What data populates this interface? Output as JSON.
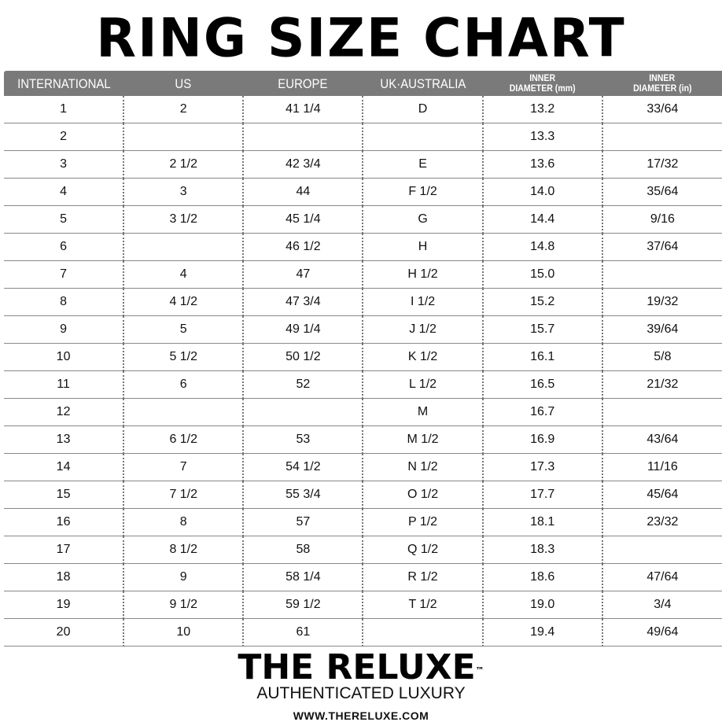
{
  "title": "RING SIZE CHART",
  "table": {
    "headers": [
      "INTERNATIONAL",
      "US",
      "EUROPE",
      "UK · AUSTRALIA",
      "INNER DIAMETER (mm)",
      "INNER DIAMETER (in)"
    ],
    "header_lines": [
      [
        "INTERNATIONAL"
      ],
      [
        "US"
      ],
      [
        "EUROPE"
      ],
      [
        "UK·AUSTRALIA"
      ],
      [
        "INNER",
        "DIAMETER (mm)"
      ],
      [
        "INNER",
        "DIAMETER (in)"
      ]
    ],
    "rows": [
      [
        "1",
        "2",
        "41 1/4",
        "D",
        "13.2",
        "33/64"
      ],
      [
        "2",
        "",
        "",
        "",
        "13.3",
        ""
      ],
      [
        "3",
        "2 1/2",
        "42 3/4",
        "E",
        "13.6",
        "17/32"
      ],
      [
        "4",
        "3",
        "44",
        "F 1/2",
        "14.0",
        "35/64"
      ],
      [
        "5",
        "3 1/2",
        "45 1/4",
        "G",
        "14.4",
        "9/16"
      ],
      [
        "6",
        "",
        "46 1/2",
        "H",
        "14.8",
        "37/64"
      ],
      [
        "7",
        "4",
        "47",
        "H 1/2",
        "15.0",
        ""
      ],
      [
        "8",
        "4 1/2",
        "47 3/4",
        "I 1/2",
        "15.2",
        "19/32"
      ],
      [
        "9",
        "5",
        "49 1/4",
        "J 1/2",
        "15.7",
        "39/64"
      ],
      [
        "10",
        "5 1/2",
        "50 1/2",
        "K 1/2",
        "16.1",
        "5/8"
      ],
      [
        "11",
        "6",
        "52",
        "L 1/2",
        "16.5",
        "21/32"
      ],
      [
        "12",
        "",
        "",
        "M",
        "16.7",
        ""
      ],
      [
        "13",
        "6 1/2",
        "53",
        "M 1/2",
        "16.9",
        "43/64"
      ],
      [
        "14",
        "7",
        "54 1/2",
        "N 1/2",
        "17.3",
        "11/16"
      ],
      [
        "15",
        "7 1/2",
        "55 3/4",
        "O 1/2",
        "17.7",
        "45/64"
      ],
      [
        "16",
        "8",
        "57",
        "P 1/2",
        "18.1",
        "23/32"
      ],
      [
        "17",
        "8 1/2",
        "58",
        "Q 1/2",
        "18.3",
        ""
      ],
      [
        "18",
        "9",
        "58 1/4",
        "R 1/2",
        "18.6",
        "47/64"
      ],
      [
        "19",
        "9 1/2",
        "59 1/2",
        "T 1/2",
        "19.0",
        "3/4"
      ],
      [
        "20",
        "10",
        "61",
        "",
        "19.4",
        "49/64"
      ]
    ]
  },
  "brand": {
    "logo": "THE RELUXE",
    "trademark": "™",
    "tagline": "AUTHENTICATED LUXURY",
    "url": "WWW.THERELUXE.COM"
  },
  "colors": {
    "header_bg": "#7a7a7a",
    "header_text": "#ffffff",
    "rule": "#888888"
  }
}
